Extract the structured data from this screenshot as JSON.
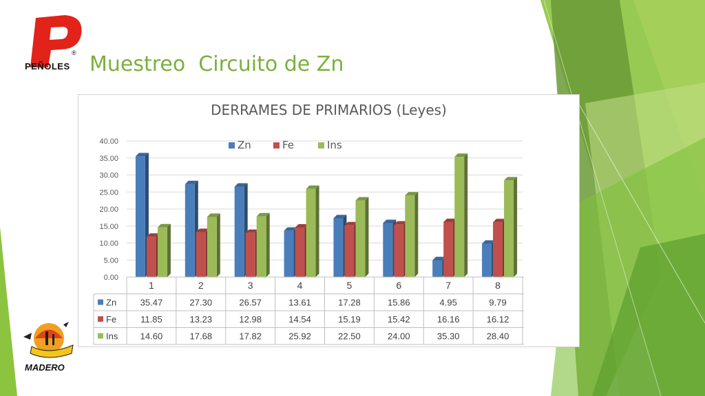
{
  "slide": {
    "title": "Muestreo  Circuito de Zn",
    "logo_top_text": "PEÑOLES",
    "logo_registered": "®",
    "logo_bottom_text": "MADERO"
  },
  "chart_data": {
    "type": "bar",
    "title": "DERRAMES DE PRIMARIOS (Leyes)",
    "categories": [
      "1",
      "2",
      "3",
      "4",
      "5",
      "6",
      "7",
      "8"
    ],
    "series": [
      {
        "name": "Zn",
        "color": "#4a7ebb",
        "values": [
          35.47,
          27.3,
          26.57,
          13.61,
          17.28,
          15.86,
          4.95,
          9.79
        ],
        "labels": [
          "35.47",
          "27.30",
          "26.57",
          "13.61",
          "17.28",
          "15.86",
          "4.95",
          "9.79"
        ]
      },
      {
        "name": "Fe",
        "color": "#c0504d",
        "values": [
          11.85,
          13.23,
          12.98,
          14.54,
          15.19,
          15.42,
          16.16,
          16.12
        ],
        "labels": [
          "11.85",
          "13.23",
          "12.98",
          "14.54",
          "15.19",
          "15.42",
          "16.16",
          "16.12"
        ]
      },
      {
        "name": "Ins",
        "color": "#9bbb59",
        "values": [
          14.6,
          17.68,
          17.82,
          25.92,
          22.5,
          24.0,
          35.3,
          28.4
        ],
        "labels": [
          "14.60",
          "17.68",
          "17.82",
          "25.92",
          "22.50",
          "24.00",
          "35.30",
          "28.40"
        ]
      }
    ],
    "yticks": [
      "0.00",
      "5.00",
      "10.00",
      "15.00",
      "20.00",
      "25.00",
      "30.00",
      "35.00",
      "40.00"
    ],
    "ylim": [
      0,
      40
    ],
    "legend_position": "top",
    "data_table": true,
    "grid": true
  }
}
